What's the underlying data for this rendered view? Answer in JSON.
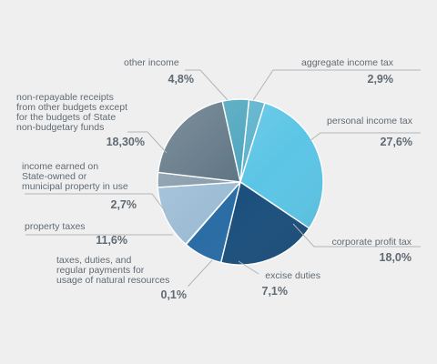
{
  "chart_data": {
    "type": "pie",
    "title": "",
    "slices": [
      {
        "label": "aggregate income tax",
        "value_text": "2,9%",
        "value": 2.9,
        "color": "#5ab1cc"
      },
      {
        "label": "personal income tax",
        "value_text": "27,6%",
        "value": 27.6,
        "color": "#5cc5e6"
      },
      {
        "label": "corporate profit tax",
        "value_text": "18,0%",
        "value": 18.0,
        "color": "#1b4f7c"
      },
      {
        "label": "excise duties",
        "value_text": "7,1%",
        "value": 7.1,
        "color": "#2a6ca4"
      },
      {
        "label": "taxes, duties, and regular payments for usage of natural resources",
        "value_text": "0,1%",
        "value": 0.1,
        "color": "#2d3a48"
      },
      {
        "label": "property taxes",
        "value_text": "11,6%",
        "value": 11.6,
        "color": "#9bbcd5"
      },
      {
        "label": "income earned on State-owned or municipal property in use",
        "value_text": "2,7%",
        "value": 2.7,
        "color": "#8599a9"
      },
      {
        "label": "non-repayable receipts from other budgets except for the budgets of State non-budgetary funds",
        "value_text": "18,30%",
        "value": 18.3,
        "color": "#5c7282"
      },
      {
        "label": "other income",
        "value_text": "4,8%",
        "value": 4.8,
        "color": "#4aa4bd"
      }
    ],
    "label_lines": [
      [
        "aggregate income tax"
      ],
      [
        "personal income tax"
      ],
      [
        "corporate profit tax"
      ],
      [
        "excise duties"
      ],
      [
        "taxes, duties, and",
        "regular payments for",
        "usage of natural resources"
      ],
      [
        "property taxes"
      ],
      [
        "income earned on",
        "State-owned or",
        "municipal property in use"
      ],
      [
        "non-repayable receipts",
        "from other budgets except",
        "for the budgets of State",
        "non-budgetary funds"
      ],
      [
        "other income"
      ]
    ]
  }
}
